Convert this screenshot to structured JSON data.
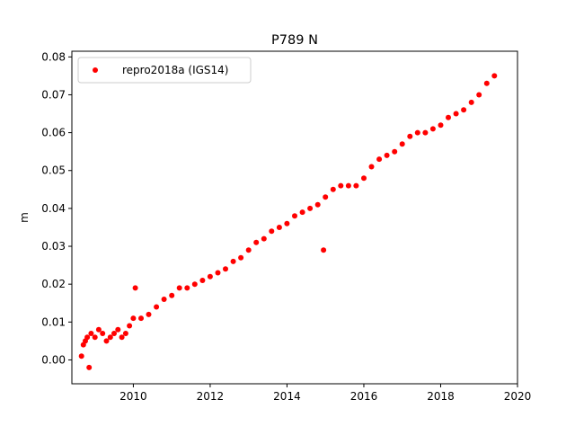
{
  "chart_data": {
    "type": "scatter",
    "title": "P789 N",
    "xlabel": "",
    "ylabel": "m",
    "xlim": [
      2008.4,
      2020.0
    ],
    "ylim": [
      -0.0063,
      0.0815
    ],
    "xticks": [
      2010,
      2012,
      2014,
      2016,
      2018,
      2020
    ],
    "xtick_labels": [
      "2010",
      "2012",
      "2014",
      "2016",
      "2018",
      "2020"
    ],
    "yticks": [
      0.0,
      0.01,
      0.02,
      0.03,
      0.04,
      0.05,
      0.06,
      0.07,
      0.08
    ],
    "ytick_labels": [
      "0.00",
      "0.01",
      "0.02",
      "0.03",
      "0.04",
      "0.05",
      "0.06",
      "0.07",
      "0.08"
    ],
    "grid": false,
    "legend_position": "top-left",
    "series": [
      {
        "name": "repro2018a (IGS14)",
        "color": "#ff0000",
        "marker": "circle",
        "points": [
          [
            2008.65,
            0.001
          ],
          [
            2008.7,
            0.004
          ],
          [
            2008.75,
            0.005
          ],
          [
            2008.8,
            0.006
          ],
          [
            2008.85,
            -0.002
          ],
          [
            2008.9,
            0.007
          ],
          [
            2009.0,
            0.006
          ],
          [
            2009.1,
            0.008
          ],
          [
            2009.2,
            0.007
          ],
          [
            2009.3,
            0.005
          ],
          [
            2009.4,
            0.006
          ],
          [
            2009.5,
            0.007
          ],
          [
            2009.6,
            0.008
          ],
          [
            2009.7,
            0.006
          ],
          [
            2009.8,
            0.007
          ],
          [
            2009.9,
            0.009
          ],
          [
            2010.0,
            0.011
          ],
          [
            2010.05,
            0.019
          ],
          [
            2010.2,
            0.011
          ],
          [
            2010.4,
            0.012
          ],
          [
            2010.6,
            0.014
          ],
          [
            2010.8,
            0.016
          ],
          [
            2011.0,
            0.017
          ],
          [
            2011.2,
            0.019
          ],
          [
            2011.4,
            0.019
          ],
          [
            2011.6,
            0.02
          ],
          [
            2011.8,
            0.021
          ],
          [
            2012.0,
            0.022
          ],
          [
            2012.2,
            0.023
          ],
          [
            2012.4,
            0.024
          ],
          [
            2012.6,
            0.026
          ],
          [
            2012.8,
            0.027
          ],
          [
            2013.0,
            0.029
          ],
          [
            2013.2,
            0.031
          ],
          [
            2013.4,
            0.032
          ],
          [
            2013.6,
            0.034
          ],
          [
            2013.8,
            0.035
          ],
          [
            2014.0,
            0.036
          ],
          [
            2014.2,
            0.038
          ],
          [
            2014.4,
            0.039
          ],
          [
            2014.6,
            0.04
          ],
          [
            2014.8,
            0.041
          ],
          [
            2014.95,
            0.029
          ],
          [
            2015.0,
            0.043
          ],
          [
            2015.2,
            0.045
          ],
          [
            2015.4,
            0.046
          ],
          [
            2015.6,
            0.046
          ],
          [
            2015.8,
            0.046
          ],
          [
            2016.0,
            0.048
          ],
          [
            2016.2,
            0.051
          ],
          [
            2016.4,
            0.053
          ],
          [
            2016.6,
            0.054
          ],
          [
            2016.8,
            0.055
          ],
          [
            2017.0,
            0.057
          ],
          [
            2017.2,
            0.059
          ],
          [
            2017.4,
            0.06
          ],
          [
            2017.6,
            0.06
          ],
          [
            2017.8,
            0.061
          ],
          [
            2018.0,
            0.062
          ],
          [
            2018.2,
            0.064
          ],
          [
            2018.4,
            0.065
          ],
          [
            2018.6,
            0.066
          ],
          [
            2018.8,
            0.068
          ],
          [
            2019.0,
            0.07
          ],
          [
            2019.2,
            0.073
          ],
          [
            2019.4,
            0.075
          ]
        ]
      }
    ]
  }
}
